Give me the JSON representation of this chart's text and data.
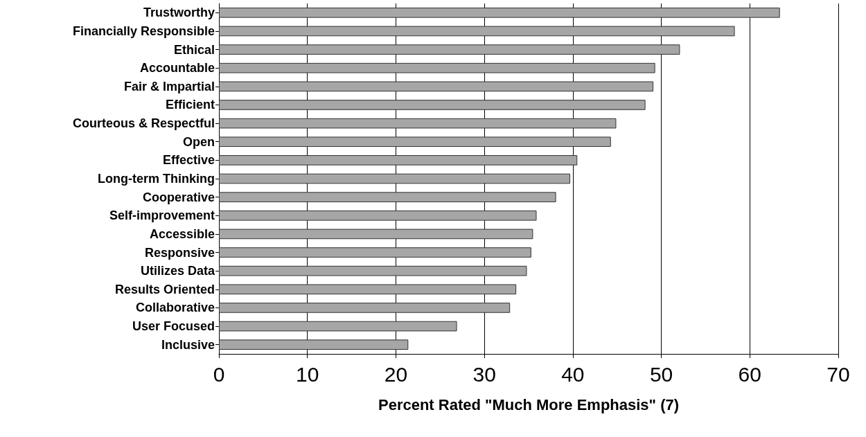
{
  "chart_data": {
    "type": "bar",
    "orientation": "horizontal",
    "xlabel": "Percent Rated \"Much More Emphasis\" (7)",
    "categories": [
      "Trustworthy",
      "Financially Responsible",
      "Ethical",
      "Accountable",
      "Fair & Impartial",
      "Efficient",
      "Courteous & Respectful",
      "Open",
      "Effective",
      "Long-term Thinking",
      "Cooperative",
      "Self-improvement",
      "Accessible",
      "Responsive",
      "Utilizes Data",
      "Results Oriented",
      "Collaborative",
      "User Focused",
      "Inclusive"
    ],
    "values": [
      63.4,
      58.3,
      52.1,
      49.3,
      49.1,
      48.2,
      44.9,
      44.3,
      40.5,
      39.7,
      38.1,
      35.9,
      35.5,
      35.3,
      34.8,
      33.6,
      32.9,
      26.9,
      21.4
    ],
    "color": "#a6a6a6",
    "xlim": [
      0,
      70
    ],
    "xticks": [
      0,
      10,
      20,
      30,
      40,
      50,
      60,
      70
    ],
    "grid": "x"
  }
}
